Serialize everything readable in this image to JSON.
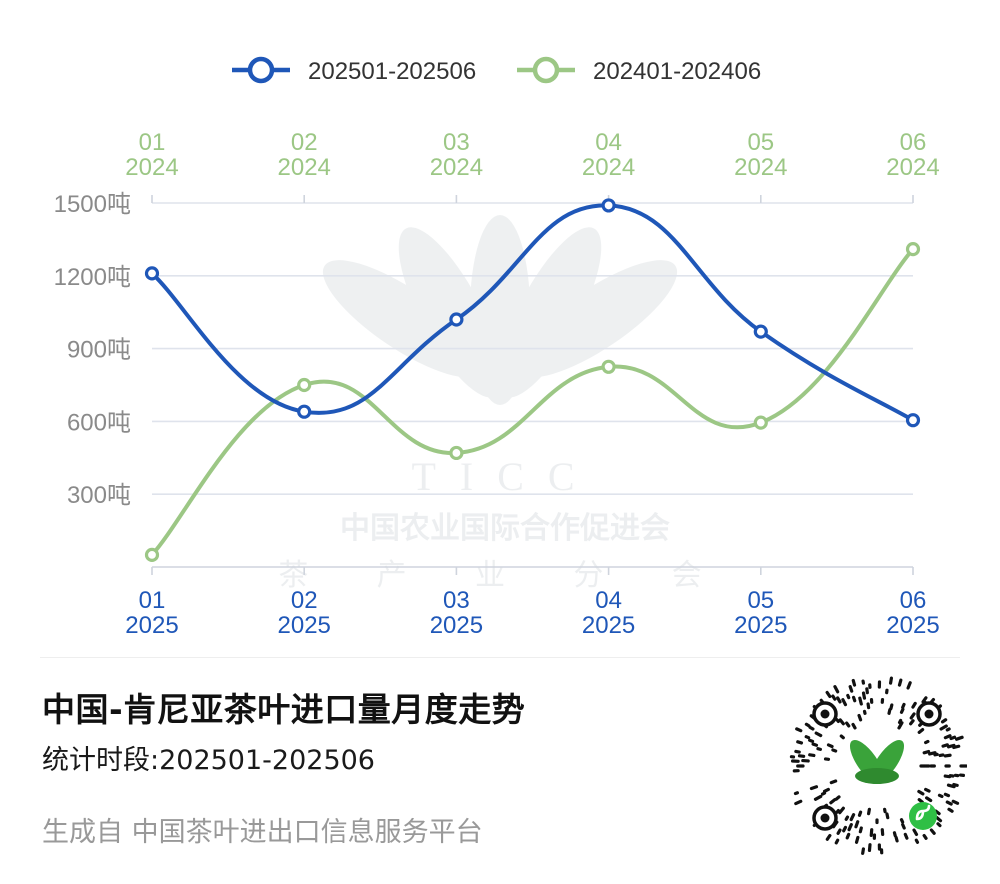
{
  "chart_data": {
    "type": "line",
    "legend_position": "top",
    "series": [
      {
        "name": "202501-202506",
        "color": "#1f57b8",
        "axis": "bottom",
        "categories": [
          "01\n2025",
          "02\n2025",
          "03\n2025",
          "04\n2025",
          "05\n2025",
          "06\n2025"
        ],
        "values": [
          1210,
          640,
          1020,
          1490,
          970,
          605
        ]
      },
      {
        "name": "202401-202406",
        "color": "#9cc785",
        "axis": "top",
        "categories": [
          "01\n2024",
          "02\n2024",
          "03\n2024",
          "04\n2024",
          "05\n2024",
          "06\n2024"
        ],
        "values": [
          50,
          750,
          470,
          825,
          595,
          1310
        ]
      }
    ],
    "y_ticks": [
      "300吨",
      "600吨",
      "900吨",
      "1200吨",
      "1500吨"
    ],
    "y_tick_values": [
      300,
      600,
      900,
      1200,
      1500
    ],
    "ylim": [
      0,
      1500
    ],
    "grid": true,
    "watermark": {
      "logo_text": "TICC",
      "org_name": "中国农业国际合作促进会",
      "branch_name": "茶 产 业 分 会"
    }
  },
  "footer": {
    "title": "中国-肯尼亚茶叶进口量月度走势",
    "period": "统计时段:202501-202506",
    "source": "生成自 中国茶叶进出口信息服务平台"
  },
  "qr_code": {
    "icon": "mini-program-qr-code",
    "accent_color": "#3aa33a"
  }
}
